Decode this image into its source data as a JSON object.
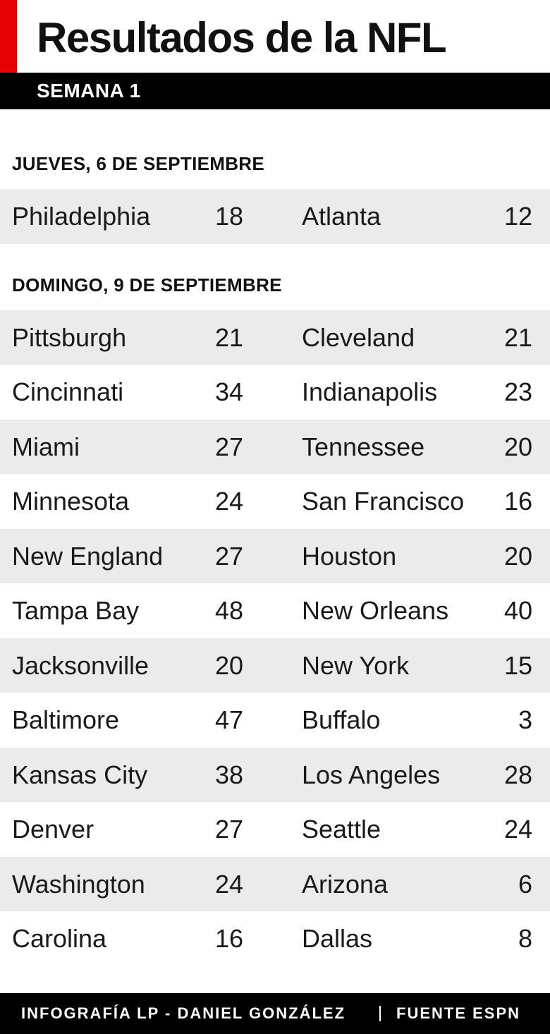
{
  "header": {
    "title": "Resultados de la NFL",
    "subtitle": "SEMANA 1"
  },
  "sections": [
    {
      "label": "JUEVES, 6 DE SEPTIEMBRE",
      "games": [
        [
          "Philadelphia",
          "18",
          "Atlanta",
          "12"
        ]
      ]
    },
    {
      "label": "DOMINGO, 9 DE SEPTIEMBRE",
      "games": [
        [
          "Pittsburgh",
          "21",
          "Cleveland",
          "21"
        ],
        [
          "Cincinnati",
          "34",
          "Indianapolis",
          "23"
        ],
        [
          "Miami",
          "27",
          "Tennessee",
          "20"
        ],
        [
          "Minnesota",
          "24",
          "San Francisco",
          "16"
        ],
        [
          "New England",
          "27",
          "Houston",
          "20"
        ],
        [
          "Tampa Bay",
          "48",
          "New Orleans",
          "40"
        ],
        [
          "Jacksonville",
          "20",
          "New York",
          "15"
        ],
        [
          "Baltimore",
          "47",
          "Buffalo",
          "3"
        ],
        [
          "Kansas City",
          "38",
          "Los Angeles",
          "28"
        ],
        [
          "Denver",
          "27",
          "Seattle",
          "24"
        ],
        [
          "Washington",
          "24",
          "Arizona",
          "6"
        ],
        [
          "Carolina",
          "16",
          "Dallas",
          "8"
        ]
      ]
    }
  ],
  "footer": {
    "credit": "INFOGRAFÍA LP - DANIEL GONZÁLEZ",
    "source": "FUENTE ESPN"
  }
}
